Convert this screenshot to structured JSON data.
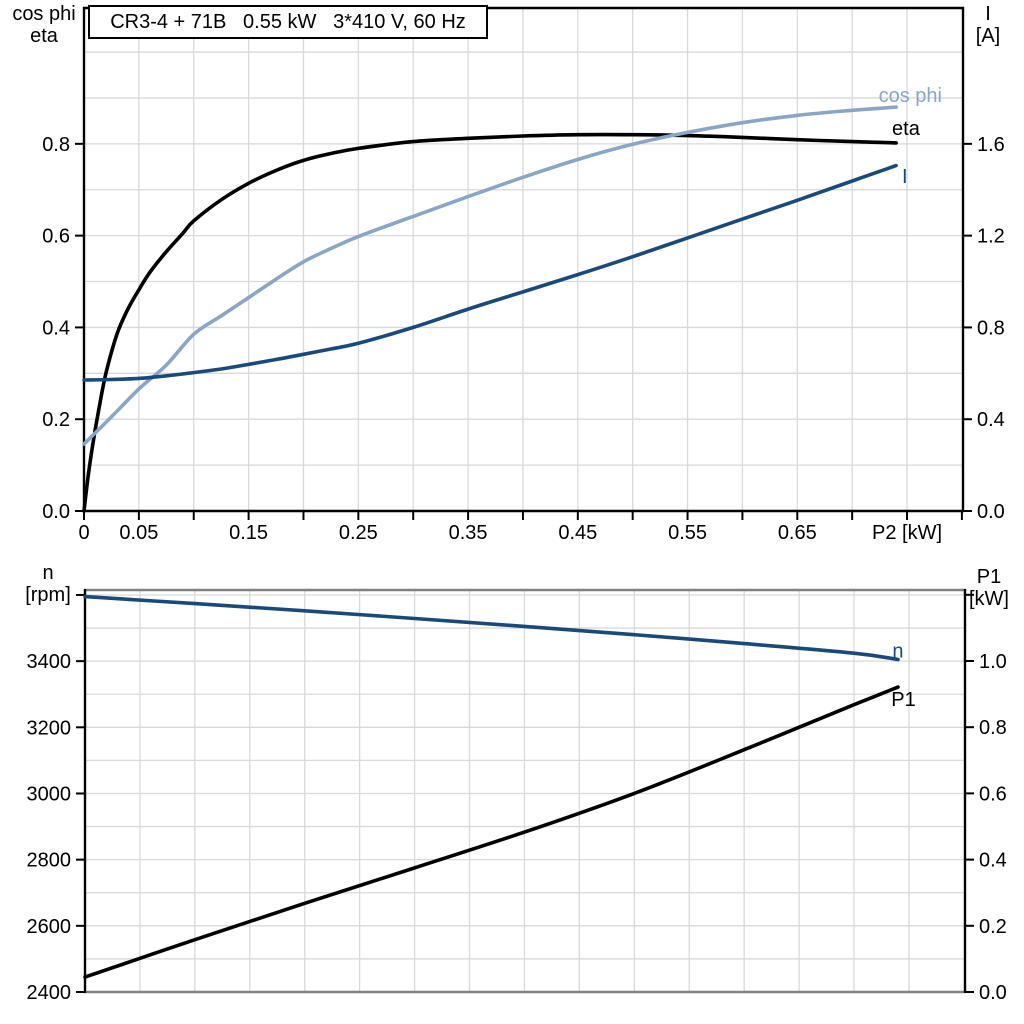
{
  "colors": {
    "grid": "#d9d9d9",
    "frame_gray": "#828282",
    "axis": "#000000",
    "dark_blue": "#1a4a7c",
    "light_blue": "#8aa5c5"
  },
  "chart_data": [
    {
      "id": "motor-electrical-chart",
      "type": "line",
      "title": "CR3-4 + 71B   0.55 kW   3*410 V, 60 Hz",
      "x_axis": {
        "min": 0,
        "max": 0.801,
        "grid_step": 0.05,
        "tick_step": 0.05,
        "tick_label_values": [
          0,
          0.05,
          0.15,
          0.25,
          0.35,
          0.45,
          0.55,
          0.65
        ],
        "tick_labels": [
          "0",
          "0.05",
          "0.15",
          "0.25",
          "0.35",
          "0.45",
          "0.55",
          "0.65"
        ],
        "axis_label": "P2 [kW]",
        "axis_label_value": 0.75
      },
      "y_left": {
        "title_lines": [
          "cos phi",
          "eta"
        ],
        "min": 0,
        "max": 1.096,
        "grid_step": 0.1,
        "ticks": [
          0.0,
          0.2,
          0.4,
          0.6,
          0.8
        ],
        "tick_labels": [
          "0.0",
          "0.2",
          "0.4",
          "0.6",
          "0.8"
        ]
      },
      "y_right": {
        "title_lines": [
          "I",
          "[A]"
        ],
        "min": 0,
        "max": 2.192,
        "grid_step": 0.2,
        "ticks": [
          0.0,
          0.4,
          0.8,
          1.2,
          1.6
        ],
        "tick_labels": [
          "0.0",
          "0.4",
          "0.8",
          "1.2",
          "1.6"
        ]
      },
      "series": [
        {
          "name": "eta",
          "label": "eta",
          "axis": "left",
          "color": "#000000",
          "label_at": {
            "x": 0.749,
            "y": 0.834
          },
          "points": [
            [
              0,
              0
            ],
            [
              0.004,
              0.08
            ],
            [
              0.008,
              0.145
            ],
            [
              0.013,
              0.215
            ],
            [
              0.02,
              0.3
            ],
            [
              0.03,
              0.385
            ],
            [
              0.04,
              0.44
            ],
            [
              0.05,
              0.482
            ],
            [
              0.06,
              0.52
            ],
            [
              0.075,
              0.565
            ],
            [
              0.09,
              0.605
            ],
            [
              0.1,
              0.632
            ],
            [
              0.125,
              0.678
            ],
            [
              0.15,
              0.714
            ],
            [
              0.175,
              0.742
            ],
            [
              0.2,
              0.764
            ],
            [
              0.225,
              0.779
            ],
            [
              0.25,
              0.79
            ],
            [
              0.3,
              0.805
            ],
            [
              0.35,
              0.812
            ],
            [
              0.4,
              0.817
            ],
            [
              0.45,
              0.82
            ],
            [
              0.5,
              0.82
            ],
            [
              0.55,
              0.818
            ],
            [
              0.6,
              0.814
            ],
            [
              0.65,
              0.809
            ],
            [
              0.7,
              0.805
            ],
            [
              0.74,
              0.802
            ]
          ]
        },
        {
          "name": "cos-phi",
          "label": "cos phi",
          "axis": "left",
          "color": "#8aa5c5",
          "label_at": {
            "x": 0.753,
            "y": 0.906
          },
          "points": [
            [
              0,
              0.146
            ],
            [
              0.025,
              0.205
            ],
            [
              0.05,
              0.266
            ],
            [
              0.075,
              0.318
            ],
            [
              0.1,
              0.385
            ],
            [
              0.125,
              0.425
            ],
            [
              0.15,
              0.465
            ],
            [
              0.175,
              0.505
            ],
            [
              0.2,
              0.543
            ],
            [
              0.225,
              0.572
            ],
            [
              0.25,
              0.598
            ],
            [
              0.3,
              0.642
            ],
            [
              0.35,
              0.685
            ],
            [
              0.4,
              0.727
            ],
            [
              0.45,
              0.766
            ],
            [
              0.5,
              0.799
            ],
            [
              0.55,
              0.825
            ],
            [
              0.6,
              0.846
            ],
            [
              0.65,
              0.862
            ],
            [
              0.7,
              0.873
            ],
            [
              0.74,
              0.88
            ]
          ]
        },
        {
          "name": "current",
          "label": "I",
          "axis": "right",
          "color": "#1a4a7c",
          "label_at": {
            "x": 0.748,
            "y": 1.459
          },
          "points": [
            [
              0,
              0.571
            ],
            [
              0.025,
              0.573
            ],
            [
              0.05,
              0.578
            ],
            [
              0.075,
              0.589
            ],
            [
              0.1,
              0.603
            ],
            [
              0.125,
              0.619
            ],
            [
              0.15,
              0.639
            ],
            [
              0.175,
              0.66
            ],
            [
              0.2,
              0.683
            ],
            [
              0.225,
              0.706
            ],
            [
              0.25,
              0.731
            ],
            [
              0.3,
              0.8
            ],
            [
              0.35,
              0.88
            ],
            [
              0.4,
              0.955
            ],
            [
              0.45,
              1.03
            ],
            [
              0.5,
              1.108
            ],
            [
              0.55,
              1.19
            ],
            [
              0.6,
              1.272
            ],
            [
              0.65,
              1.354
            ],
            [
              0.7,
              1.438
            ],
            [
              0.74,
              1.505
            ]
          ]
        }
      ]
    },
    {
      "id": "speed-power-chart",
      "type": "line",
      "title": "",
      "x_axis": {
        "min": 0,
        "max": 0.801,
        "grid_step": 0.05,
        "tick_step": null,
        "tick_label_values": [],
        "tick_labels": [],
        "axis_label": null,
        "axis_label_value": null
      },
      "y_left": {
        "title_lines": [
          "n",
          "[rpm]"
        ],
        "min": 2400,
        "max": 3615,
        "grid_step": 100,
        "ticks": [
          2400,
          2600,
          2800,
          3000,
          3200,
          3400,
          3600
        ],
        "tick_labels": [
          "2400",
          "2600",
          "2800",
          "3000",
          "3200",
          "3400",
          ""
        ]
      },
      "y_right": {
        "title_lines": [
          "P1",
          "[kW]"
        ],
        "min": 0,
        "max": 1.2145,
        "grid_step": 0.1,
        "ticks": [
          0.0,
          0.2,
          0.4,
          0.6,
          0.8,
          1.0,
          1.2
        ],
        "tick_labels": [
          "0.0",
          "0.2",
          "0.4",
          "0.6",
          "0.8",
          "1.0",
          ""
        ]
      },
      "series": [
        {
          "name": "speed",
          "label": "n",
          "axis": "left",
          "color": "#1a4a7c",
          "label_at": {
            "x": 0.74,
            "y": 3432
          },
          "points": [
            [
              0,
              3595
            ],
            [
              0.1,
              3574
            ],
            [
              0.2,
              3552
            ],
            [
              0.3,
              3529
            ],
            [
              0.4,
              3505
            ],
            [
              0.5,
              3480
            ],
            [
              0.6,
              3453
            ],
            [
              0.7,
              3424
            ],
            [
              0.74,
              3405
            ]
          ]
        },
        {
          "name": "p1",
          "label": "P1",
          "axis": "right",
          "color": "#000000",
          "label_at": {
            "x": 0.745,
            "y": 0.885
          },
          "points": [
            [
              0,
              0.045
            ],
            [
              0.1,
              0.158
            ],
            [
              0.2,
              0.268
            ],
            [
              0.3,
              0.375
            ],
            [
              0.4,
              0.483
            ],
            [
              0.5,
              0.6
            ],
            [
              0.6,
              0.732
            ],
            [
              0.7,
              0.868
            ],
            [
              0.74,
              0.921
            ]
          ]
        }
      ]
    }
  ]
}
